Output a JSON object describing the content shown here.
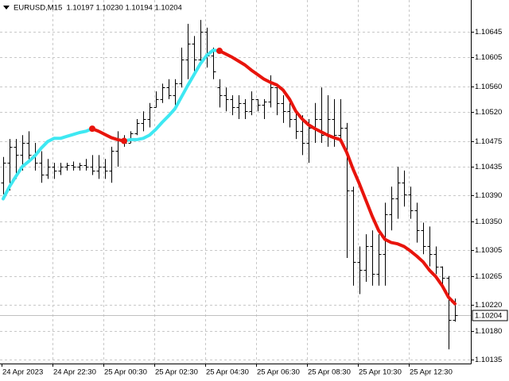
{
  "chart_data": {
    "type": "ohlc",
    "title": "EURUSD,M15  1.10197 1.10230 1.10194 1.10204",
    "categories": [
      "24 Apr 2023",
      null,
      null,
      null,
      null,
      null,
      null,
      null,
      "24 Apr 22:30",
      null,
      null,
      null,
      null,
      null,
      null,
      null,
      "25 Apr 00:30",
      null,
      null,
      null,
      null,
      null,
      null,
      null,
      "25 Apr 02:30",
      null,
      null,
      null,
      null,
      null,
      null,
      null,
      "25 Apr 04:30",
      null,
      null,
      null,
      null,
      null,
      null,
      null,
      "25 Apr 06:30",
      null,
      null,
      null,
      null,
      null,
      null,
      null,
      "25 Apr 08:30",
      null,
      null,
      null,
      null,
      null,
      null,
      null,
      "25 Apr 10:30",
      null,
      null,
      null,
      null,
      null,
      null,
      null,
      "25 Apr 12:30",
      null,
      null,
      null,
      null,
      null,
      null,
      null
    ],
    "open": [
      1.1041,
      1.10441,
      1.10466,
      1.10453,
      1.10472,
      1.10453,
      1.10441,
      1.10422,
      1.10435,
      1.10429,
      1.10435,
      1.10437,
      1.10435,
      1.10438,
      1.10435,
      1.10429,
      1.10435,
      1.10429,
      1.10459,
      1.10478,
      1.10472,
      1.10487,
      1.10503,
      1.10509,
      1.10527,
      1.1054,
      1.10558,
      1.10546,
      1.10564,
      1.10601,
      1.10626,
      1.10601,
      1.10645,
      1.10608,
      1.10558,
      1.10546,
      1.1054,
      1.10527,
      1.10534,
      1.10521,
      1.1054,
      1.10531,
      1.10536,
      1.10558,
      1.10534,
      1.10521,
      1.10509,
      1.1049,
      1.10472,
      1.10496,
      1.10509,
      1.10484,
      1.10509,
      1.10484,
      1.10496,
      1.10398,
      1.10287,
      1.10274,
      1.10311,
      1.10268,
      1.10299,
      1.10361,
      1.10385,
      1.1041,
      1.10392,
      1.10367,
      1.10336,
      1.10311,
      1.10299,
      1.1028,
      1.10262,
      1.10197
    ],
    "high": [
      1.1045,
      1.10478,
      1.10478,
      1.10484,
      1.1049,
      1.10472,
      1.10459,
      1.10447,
      1.10441,
      1.10441,
      1.10441,
      1.10443,
      1.10441,
      1.10447,
      1.10453,
      1.10453,
      1.10447,
      1.10466,
      1.1049,
      1.10484,
      1.1049,
      1.10509,
      1.10521,
      1.10534,
      1.10552,
      1.10564,
      1.10571,
      1.10571,
      1.1062,
      1.10657,
      1.10638,
      1.10663,
      1.10651,
      1.1062,
      1.10571,
      1.10558,
      1.10546,
      1.10546,
      1.1054,
      1.10552,
      1.1054,
      1.1054,
      1.10577,
      1.10558,
      1.10546,
      1.10534,
      1.10521,
      1.10515,
      1.10509,
      1.10534,
      1.10558,
      1.10546,
      1.1054,
      1.1054,
      1.10503,
      1.10404,
      1.10311,
      1.1033,
      1.10336,
      1.1033,
      1.10379,
      1.10404,
      1.10435,
      1.10429,
      1.10404,
      1.10379,
      1.10348,
      1.10342,
      1.10311,
      1.1028,
      1.10265,
      1.1023
    ],
    "low": [
      1.10392,
      1.10398,
      1.10416,
      1.10429,
      1.10441,
      1.10429,
      1.1041,
      1.10416,
      1.10416,
      1.10422,
      1.10429,
      1.10429,
      1.10429,
      1.10429,
      1.10422,
      1.10416,
      1.10416,
      1.1041,
      1.10435,
      1.10466,
      1.10472,
      1.10484,
      1.1049,
      1.10496,
      1.10527,
      1.10534,
      1.1054,
      1.10527,
      1.10558,
      1.10571,
      1.10583,
      1.10595,
      1.10589,
      1.10571,
      1.10527,
      1.10521,
      1.10515,
      1.10509,
      1.10509,
      1.10515,
      1.10521,
      1.10509,
      1.10527,
      1.10515,
      1.10503,
      1.10496,
      1.10478,
      1.10453,
      1.10441,
      1.10472,
      1.10472,
      1.10466,
      1.10466,
      1.10472,
      1.10293,
      1.1025,
      1.10237,
      1.10256,
      1.1025,
      1.1025,
      1.1025,
      1.10336,
      1.10354,
      1.10373,
      1.10354,
      1.10317,
      1.10299,
      1.1028,
      1.10268,
      1.1025,
      1.10151,
      1.10194
    ],
    "close": [
      1.10441,
      1.10466,
      1.10453,
      1.10472,
      1.10453,
      1.10441,
      1.10422,
      1.10435,
      1.10429,
      1.10435,
      1.10437,
      1.10435,
      1.10438,
      1.10435,
      1.10429,
      1.10435,
      1.10429,
      1.10459,
      1.10478,
      1.10472,
      1.10487,
      1.10503,
      1.10509,
      1.10527,
      1.1054,
      1.10558,
      1.10546,
      1.10564,
      1.10601,
      1.10626,
      1.10601,
      1.10645,
      1.10608,
      1.10583,
      1.10546,
      1.1054,
      1.10527,
      1.10534,
      1.10521,
      1.1054,
      1.10531,
      1.10536,
      1.10558,
      1.10534,
      1.10521,
      1.10509,
      1.1049,
      1.10472,
      1.10496,
      1.10509,
      1.10484,
      1.10509,
      1.10484,
      1.10496,
      1.10398,
      1.10287,
      1.10274,
      1.10311,
      1.10268,
      1.10299,
      1.10361,
      1.10385,
      1.1041,
      1.10392,
      1.10367,
      1.10336,
      1.10311,
      1.10299,
      1.1028,
      1.10262,
      1.10197,
      1.10204
    ],
    "bar_color": "#000000",
    "series": [
      {
        "color": "#3ee8f2",
        "values": [
          1.10385,
          1.10404,
          1.1042,
          1.10435,
          1.10443,
          1.10452,
          1.10464,
          1.10474,
          1.10479,
          1.10479,
          1.10482,
          1.10485,
          1.10488,
          1.1049,
          1.10494,
          null,
          null,
          null,
          null,
          1.10475,
          1.10477,
          1.10477,
          1.10479,
          1.10484,
          1.10493,
          1.10504,
          1.10514,
          1.10525,
          1.10543,
          1.10561,
          1.10578,
          1.10595,
          1.10608,
          1.10616,
          1.10615,
          null,
          null,
          null,
          null,
          null,
          null,
          null,
          null,
          null,
          null,
          null,
          null,
          null,
          null,
          null,
          null,
          null,
          null,
          null,
          null,
          null,
          null,
          null,
          null,
          null,
          null,
          null,
          null,
          null,
          null,
          null,
          null,
          null,
          null,
          null,
          null,
          null
        ]
      },
      {
        "color": "#e8140c",
        "values": [
          null,
          null,
          null,
          null,
          null,
          null,
          null,
          null,
          null,
          null,
          null,
          null,
          null,
          null,
          1.10494,
          1.1049,
          1.10485,
          1.1048,
          1.10477,
          1.10475,
          null,
          null,
          null,
          null,
          null,
          null,
          null,
          null,
          null,
          null,
          null,
          null,
          null,
          null,
          1.10615,
          1.1061,
          1.10605,
          1.10599,
          1.10593,
          1.10585,
          1.10578,
          1.10571,
          1.10566,
          1.10562,
          1.10554,
          1.1054,
          1.10521,
          1.10509,
          1.105,
          1.10494,
          1.10489,
          1.10484,
          1.1048,
          1.10477,
          1.10457,
          1.10431,
          1.10408,
          1.10383,
          1.10358,
          1.10336,
          1.10322,
          1.10317,
          1.10315,
          1.10311,
          1.10304,
          1.10296,
          1.10287,
          1.10274,
          1.10264,
          1.1025,
          1.10232,
          1.10222
        ]
      }
    ],
    "marker_color": "#e8140c",
    "price_line_color": "#c0c0c0",
    "ylim": [
      1.10129,
      1.10694
    ],
    "yticks": [
      1.10645,
      1.10605,
      {
        "value": 1.1056,
        "label": "1.10560"
      },
      {
        "value": 1.1052,
        "label": "1.10520"
      },
      1.10475,
      1.10435,
      {
        "value": 1.1039,
        "label": "1.10390"
      },
      {
        "value": 1.1035,
        "label": "1.10350"
      },
      1.10305,
      1.10265,
      {
        "value": 1.1022,
        "label": "1.10220"
      },
      {
        "value": 1.1018,
        "label": "1.10180"
      },
      1.10135
    ],
    "grid": true
  }
}
